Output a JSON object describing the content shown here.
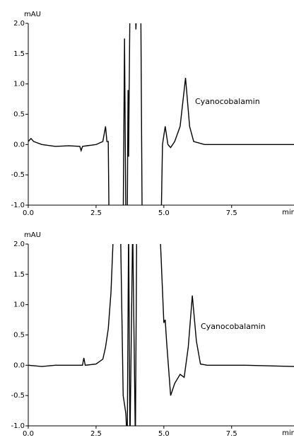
{
  "chart_data": [
    {
      "type": "line",
      "x_label": "min",
      "y_label": "mAU",
      "annotation": "Cyanocobalamin",
      "xlim": [
        0,
        9.8
      ],
      "ylim": [
        -1.0,
        2.0
      ],
      "xticks": [
        {
          "value": 0,
          "label": "0.0"
        },
        2.5,
        {
          "value": 5,
          "label": "5.0"
        },
        7.5
      ],
      "yticks": [
        {
          "value": -1,
          "label": "-1.0"
        },
        {
          "value": -0.5,
          "label": "-0.5"
        },
        {
          "value": 0,
          "label": "0.0"
        },
        {
          "value": 0.5,
          "label": "0.5"
        },
        {
          "value": 1,
          "label": "1.0"
        },
        {
          "value": 1.5,
          "label": "1.5"
        },
        {
          "value": 2,
          "label": "2.0"
        }
      ],
      "series": [
        {
          "color": "#000000",
          "x": [
            0.0,
            0.1,
            0.2,
            0.5,
            1.0,
            1.5,
            1.9,
            1.95,
            2.0,
            2.5,
            2.75,
            2.85,
            2.9,
            2.95,
            2.98,
            3.5,
            3.55,
            3.6,
            3.65,
            3.68,
            3.7,
            3.75,
            3.95,
            3.97,
            4.0,
            4.15,
            4.2,
            4.9,
            4.95,
            5.05,
            5.15,
            5.25,
            5.4,
            5.6,
            5.8,
            5.95,
            6.1,
            6.5,
            7.5,
            8.5,
            9.8
          ],
          "values": [
            0.05,
            0.1,
            0.05,
            0.0,
            -0.03,
            -0.02,
            -0.03,
            -0.1,
            -0.03,
            0.0,
            0.05,
            0.3,
            0.05,
            0.05,
            -1.3,
            -1.3,
            1.75,
            -1.3,
            -1.3,
            0.9,
            -0.2,
            2.3,
            2.3,
            1.9,
            2.3,
            2.3,
            -1.3,
            -1.3,
            0.0,
            0.3,
            0.0,
            -0.05,
            0.05,
            0.3,
            1.1,
            0.3,
            0.05,
            0.0,
            0.0,
            0.0,
            0.0
          ]
        }
      ]
    },
    {
      "type": "line",
      "x_label": "min",
      "y_label": "mAU",
      "annotation": "Cyanocobalamin",
      "xlim": [
        0,
        9.8
      ],
      "ylim": [
        -1.0,
        2.0
      ],
      "xticks": [
        {
          "value": 0,
          "label": "0.0"
        },
        2.5,
        {
          "value": 5,
          "label": "5.0"
        },
        7.5
      ],
      "yticks": [
        {
          "value": -1,
          "label": "-1.0"
        },
        {
          "value": -0.5,
          "label": "-0.5"
        },
        {
          "value": 0,
          "label": "0.0"
        },
        {
          "value": 0.5,
          "label": "0.5"
        },
        {
          "value": 1,
          "label": "1.0"
        },
        {
          "value": 1.5,
          "label": "1.5"
        },
        {
          "value": 2,
          "label": "2.0"
        }
      ],
      "series": [
        {
          "color": "#000000",
          "x": [
            0.0,
            0.5,
            1.0,
            1.5,
            2.0,
            2.05,
            2.1,
            2.5,
            2.75,
            2.85,
            2.95,
            3.05,
            3.15,
            3.4,
            3.5,
            3.6,
            3.65,
            3.7,
            3.75,
            3.85,
            3.95,
            4.0,
            4.85,
            5.0,
            5.05,
            5.1,
            5.25,
            5.4,
            5.6,
            5.75,
            5.9,
            6.05,
            6.2,
            6.35,
            6.6,
            8.0,
            9.8
          ],
          "values": [
            0.0,
            -0.02,
            0.0,
            0.0,
            0.0,
            0.12,
            0.0,
            0.02,
            0.1,
            0.3,
            0.6,
            1.2,
            2.3,
            2.3,
            -0.5,
            -0.8,
            -1.3,
            2.3,
            -1.3,
            2.3,
            -1.3,
            2.3,
            2.3,
            0.7,
            0.75,
            0.4,
            -0.5,
            -0.3,
            -0.15,
            -0.2,
            0.3,
            1.15,
            0.4,
            0.02,
            0.0,
            0.0,
            -0.02
          ]
        }
      ]
    }
  ]
}
